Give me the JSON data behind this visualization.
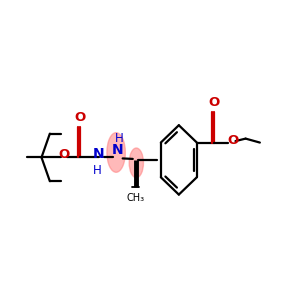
{
  "bg_color": "#ffffff",
  "figsize": [
    3.0,
    3.0
  ],
  "dpi": 100,
  "black": "#000000",
  "red": "#cc0000",
  "blue": "#0000cc",
  "pink": "#ff8080",
  "lw": 1.6,
  "xlim": [
    0.0,
    1.0
  ],
  "ylim": [
    0.25,
    0.85
  ]
}
